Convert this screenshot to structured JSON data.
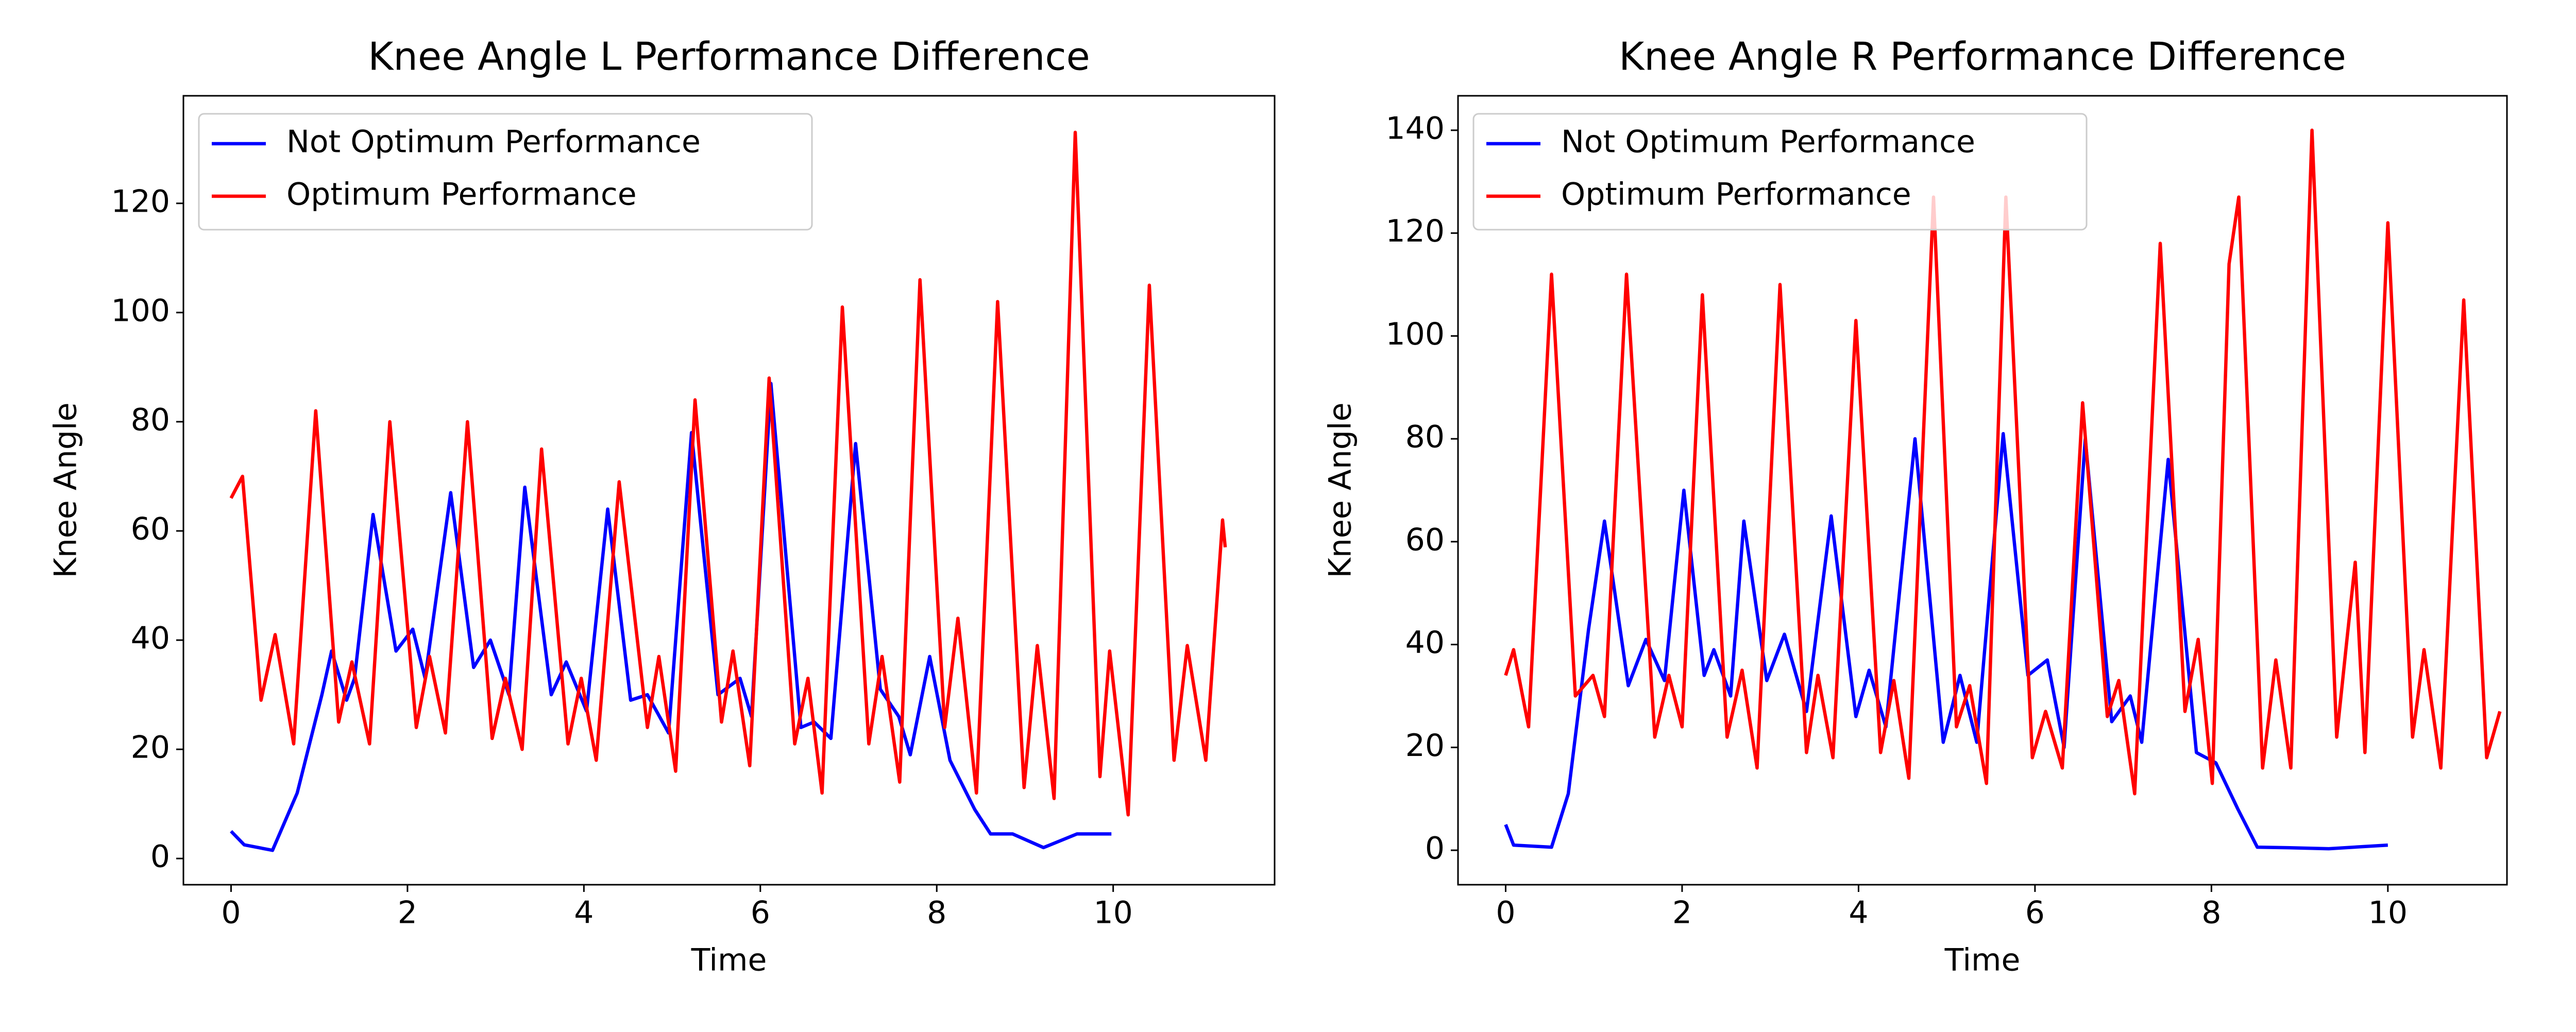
{
  "chart_data": [
    {
      "type": "line",
      "title": "Knee Angle L Performance Difference",
      "x_label": "Time",
      "y_label": "Knee Angle",
      "xlim": [
        -0.54,
        11.83
      ],
      "ylim": [
        -4.8,
        139.7
      ],
      "xticks": [
        0,
        2,
        4,
        6,
        8,
        10
      ],
      "yticks": [
        0,
        20,
        40,
        60,
        80,
        100,
        120
      ],
      "legend": "upper left",
      "grid": false,
      "series": [
        {
          "name": "Not Optimum Performance",
          "color": "#0000ff",
          "x": [
            0,
            0.15,
            0.47,
            0.75,
            1.03,
            1.14,
            1.31,
            1.4,
            1.61,
            1.87,
            2.06,
            2.2,
            2.49,
            2.75,
            2.94,
            3.15,
            3.33,
            3.63,
            3.8,
            4.03,
            4.27,
            4.53,
            4.72,
            4.96,
            5.22,
            5.52,
            5.77,
            5.9,
            6.12,
            6.46,
            6.61,
            6.8,
            7.08,
            7.36,
            7.57,
            7.7,
            7.92,
            8.15,
            8.43,
            8.61,
            8.86,
            9.21,
            9.59,
            9.98
          ],
          "values": [
            5,
            2.5,
            1.5,
            12,
            30,
            38,
            29,
            33,
            63,
            38,
            42,
            33,
            67,
            35,
            40,
            30,
            68,
            30,
            36,
            27,
            64,
            29,
            30,
            23,
            78,
            30,
            33,
            26,
            87,
            24,
            25,
            22,
            76,
            31,
            26,
            19,
            37,
            18,
            9,
            4.5,
            4.5,
            2,
            4.5,
            4.5
          ]
        },
        {
          "name": "Optimum Performance",
          "color": "#ff0000",
          "x": [
            0,
            0.13,
            0.34,
            0.5,
            0.71,
            0.96,
            1.22,
            1.37,
            1.57,
            1.8,
            2.1,
            2.25,
            2.43,
            2.68,
            2.96,
            3.11,
            3.3,
            3.52,
            3.82,
            3.97,
            4.14,
            4.4,
            4.72,
            4.85,
            5.04,
            5.26,
            5.56,
            5.69,
            5.88,
            6.1,
            6.39,
            6.54,
            6.7,
            6.93,
            7.23,
            7.38,
            7.58,
            7.81,
            8.09,
            8.24,
            8.45,
            8.69,
            8.99,
            9.14,
            9.33,
            9.57,
            9.85,
            9.96,
            10.17,
            10.41,
            10.69,
            10.84,
            11.05,
            11.24,
            11.27
          ],
          "values": [
            66,
            70,
            29,
            41,
            21,
            82,
            25,
            36,
            21,
            80,
            24,
            37,
            23,
            80,
            22,
            33,
            20,
            75,
            21,
            33,
            18,
            69,
            24,
            37,
            16,
            84,
            25,
            38,
            17,
            88,
            21,
            33,
            12,
            101,
            21,
            37,
            14,
            106,
            24,
            44,
            12,
            102,
            13,
            39,
            11,
            133,
            15,
            38,
            8,
            105,
            18,
            39,
            18,
            62,
            57
          ]
        }
      ]
    },
    {
      "type": "line",
      "title": "Knee Angle R Performance Difference",
      "x_label": "Time",
      "y_label": "Knee Angle",
      "xlim": [
        -0.54,
        11.35
      ],
      "ylim": [
        -6.7,
        146.7
      ],
      "xticks": [
        0,
        2,
        4,
        6,
        8,
        10
      ],
      "yticks": [
        0,
        20,
        40,
        60,
        80,
        100,
        120,
        140
      ],
      "legend": "upper left",
      "grid": false,
      "series": [
        {
          "name": "Not Optimum Performance",
          "color": "#0000ff",
          "x": [
            0,
            0.09,
            0.52,
            0.71,
            0.94,
            1.12,
            1.39,
            1.59,
            1.8,
            2.02,
            2.25,
            2.36,
            2.55,
            2.7,
            2.96,
            3.16,
            3.41,
            3.69,
            3.97,
            4.12,
            4.31,
            4.64,
            4.96,
            5.15,
            5.34,
            5.64,
            5.92,
            6.14,
            6.33,
            6.57,
            6.87,
            7.08,
            7.21,
            7.51,
            7.83,
            8.05,
            8.3,
            8.52,
            8.86,
            9.33,
            10
          ],
          "values": [
            5,
            1,
            0.6,
            11,
            43,
            64,
            32,
            41,
            33,
            70,
            34,
            39,
            30,
            64,
            33,
            42,
            27,
            65,
            26,
            35,
            24,
            80,
            21,
            34,
            21,
            81,
            34,
            37,
            20,
            80,
            25,
            30,
            21,
            76,
            19,
            17,
            8,
            0.6,
            0.5,
            0.3,
            1
          ]
        },
        {
          "name": "Optimum Performance",
          "color": "#ff0000",
          "x": [
            0,
            0.09,
            0.26,
            0.52,
            0.79,
            0.99,
            1.12,
            1.37,
            1.69,
            1.85,
            2.0,
            2.23,
            2.51,
            2.68,
            2.85,
            3.11,
            3.41,
            3.54,
            3.71,
            3.97,
            4.25,
            4.4,
            4.57,
            4.85,
            5.11,
            5.26,
            5.45,
            5.67,
            5.97,
            6.12,
            6.31,
            6.54,
            6.82,
            6.95,
            7.13,
            7.42,
            7.7,
            7.85,
            8.01,
            8.2,
            8.31,
            8.58,
            8.73,
            8.9,
            9.14,
            9.42,
            9.53,
            9.63,
            9.74,
            10,
            10.28,
            10.41,
            10.6,
            10.86,
            11.12,
            11.27
          ],
          "values": [
            34,
            39,
            24,
            112,
            30,
            34,
            26,
            112,
            22,
            34,
            24,
            108,
            22,
            35,
            16,
            110,
            19,
            34,
            18,
            103,
            19,
            33,
            14,
            127,
            24,
            32,
            13,
            127,
            18,
            27,
            16,
            87,
            26,
            33,
            11,
            118,
            27,
            41,
            13,
            114,
            127,
            16,
            37,
            16,
            140,
            22,
            40,
            56,
            19,
            122,
            22,
            39,
            16,
            107,
            18,
            27
          ]
        }
      ]
    }
  ]
}
